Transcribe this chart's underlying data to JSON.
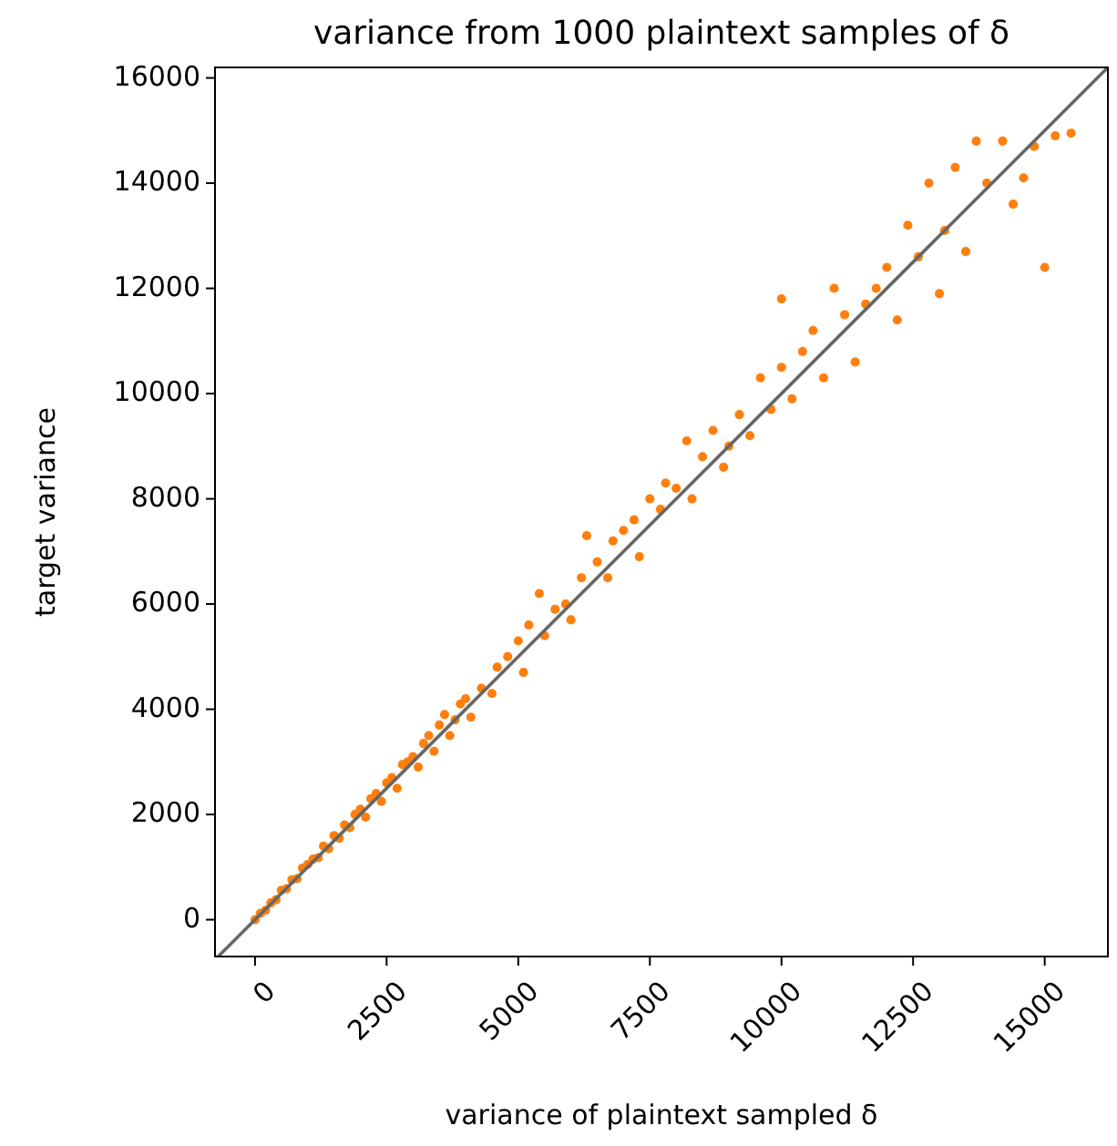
{
  "chart_data": {
    "type": "scatter",
    "title": "variance from 1000 plaintext samples of δ",
    "xlabel": "variance of plaintext sampled δ",
    "ylabel": "target variance",
    "xlim": [
      -760,
      16200
    ],
    "ylim": [
      -700,
      16200
    ],
    "xticks": [
      0,
      2500,
      5000,
      7500,
      10000,
      12500,
      15000
    ],
    "yticks": [
      0,
      2000,
      4000,
      6000,
      8000,
      10000,
      12000,
      14000,
      16000
    ],
    "grid": false,
    "series": [
      {
        "color": "#ff7f0e",
        "marker": "circle",
        "x": [
          0,
          100,
          200,
          300,
          400,
          500,
          600,
          700,
          800,
          900,
          1000,
          1100,
          1200,
          1300,
          1400,
          1500,
          1600,
          1700,
          1800,
          1900,
          2000,
          2100,
          2200,
          2300,
          2400,
          2500,
          2600,
          2700,
          2800,
          2900,
          3000,
          3100,
          3200,
          3300,
          3400,
          3500,
          3600,
          3700,
          3800,
          3900,
          4000,
          4100,
          4300,
          4500,
          4600,
          4800,
          5000,
          5100,
          5200,
          5400,
          5500,
          5700,
          5900,
          6000,
          6200,
          6300,
          6500,
          6700,
          6800,
          7000,
          7200,
          7300,
          7500,
          7700,
          7800,
          8000,
          8200,
          8300,
          8500,
          8700,
          8900,
          9000,
          9200,
          9400,
          9600,
          9800,
          10000,
          10000,
          10200,
          10400,
          10600,
          10800,
          11000,
          11200,
          11400,
          11600,
          11800,
          12000,
          12200,
          12400,
          12600,
          12800,
          13000,
          13100,
          13300,
          13500,
          13700,
          13900,
          14200,
          14400,
          14600,
          14800,
          15000,
          15200,
          15500
        ],
        "values": [
          0,
          120,
          180,
          320,
          380,
          560,
          590,
          760,
          780,
          980,
          1050,
          1150,
          1180,
          1400,
          1350,
          1600,
          1550,
          1800,
          1750,
          2000,
          2100,
          1950,
          2300,
          2400,
          2250,
          2600,
          2700,
          2500,
          2950,
          3000,
          3100,
          2900,
          3350,
          3500,
          3200,
          3700,
          3900,
          3500,
          3800,
          4100,
          4200,
          3850,
          4400,
          4300,
          4800,
          5000,
          5300,
          4700,
          5600,
          6200,
          5400,
          5900,
          6000,
          5700,
          6500,
          7300,
          6800,
          6500,
          7200,
          7400,
          7600,
          6900,
          8000,
          7800,
          8300,
          8200,
          9100,
          8000,
          8800,
          9300,
          8600,
          9000,
          9600,
          9200,
          10300,
          9700,
          11800,
          10500,
          9900,
          10800,
          11200,
          10300,
          12000,
          11500,
          10600,
          11700,
          12000,
          12400,
          11400,
          13200,
          12600,
          14000,
          11900,
          13100,
          14300,
          12700,
          14800,
          14000,
          14800,
          13600,
          14100,
          14700,
          12400,
          14900,
          14950
        ]
      },
      {
        "type": "line",
        "color": "#666666",
        "line_style": "solid",
        "marker": "none",
        "x": [
          -700,
          16200
        ],
        "values": [
          -700,
          16200
        ]
      }
    ]
  }
}
